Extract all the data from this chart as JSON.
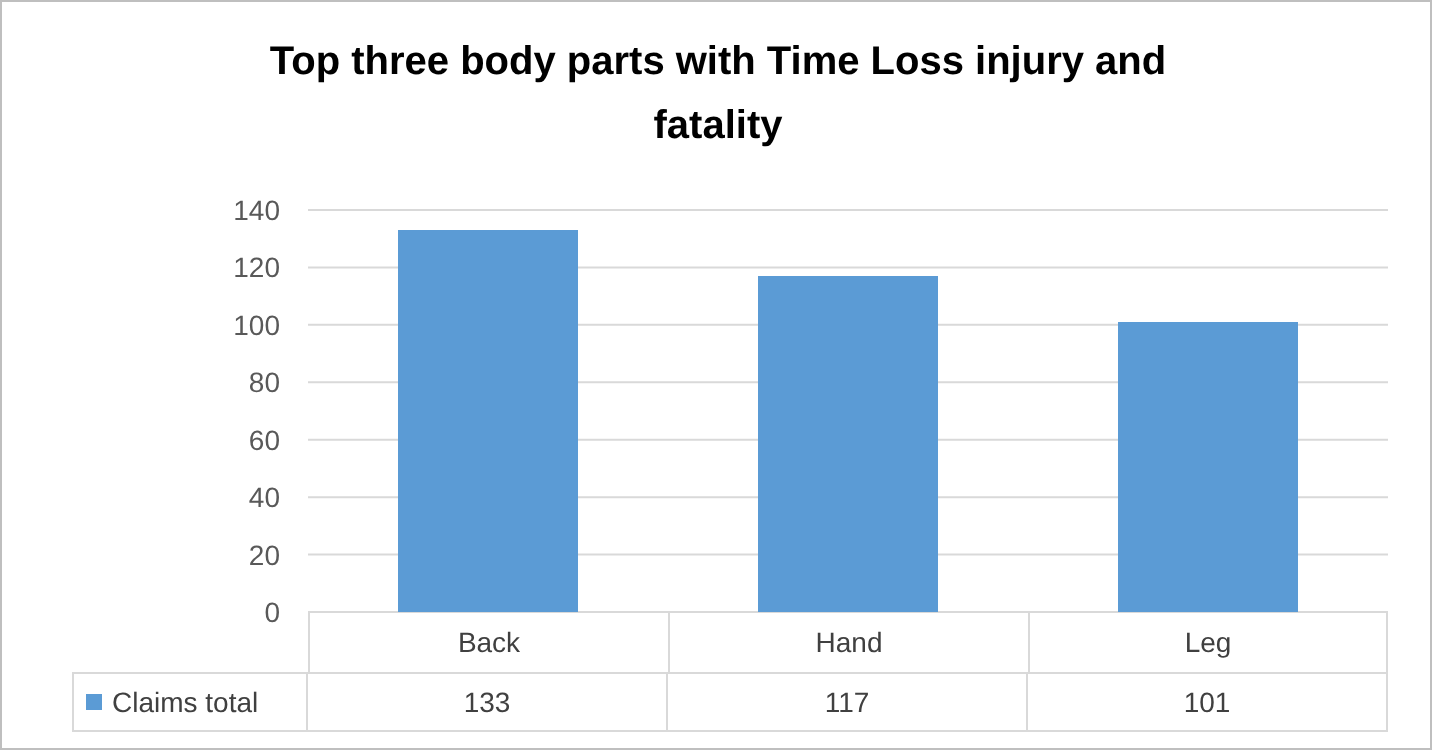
{
  "chart_data": {
    "type": "bar",
    "title": "Top three body parts with Time Loss injury and fatality",
    "categories": [
      "Back",
      "Hand",
      "Leg"
    ],
    "series": [
      {
        "name": "Claims total",
        "color": "#5b9bd5",
        "values": [
          133,
          117,
          101
        ]
      }
    ],
    "ylim": [
      0,
      140
    ],
    "yticks": [
      0,
      20,
      40,
      60,
      80,
      100,
      120,
      140
    ],
    "grid": "y",
    "legend": "bottom",
    "data_labels": true
  }
}
